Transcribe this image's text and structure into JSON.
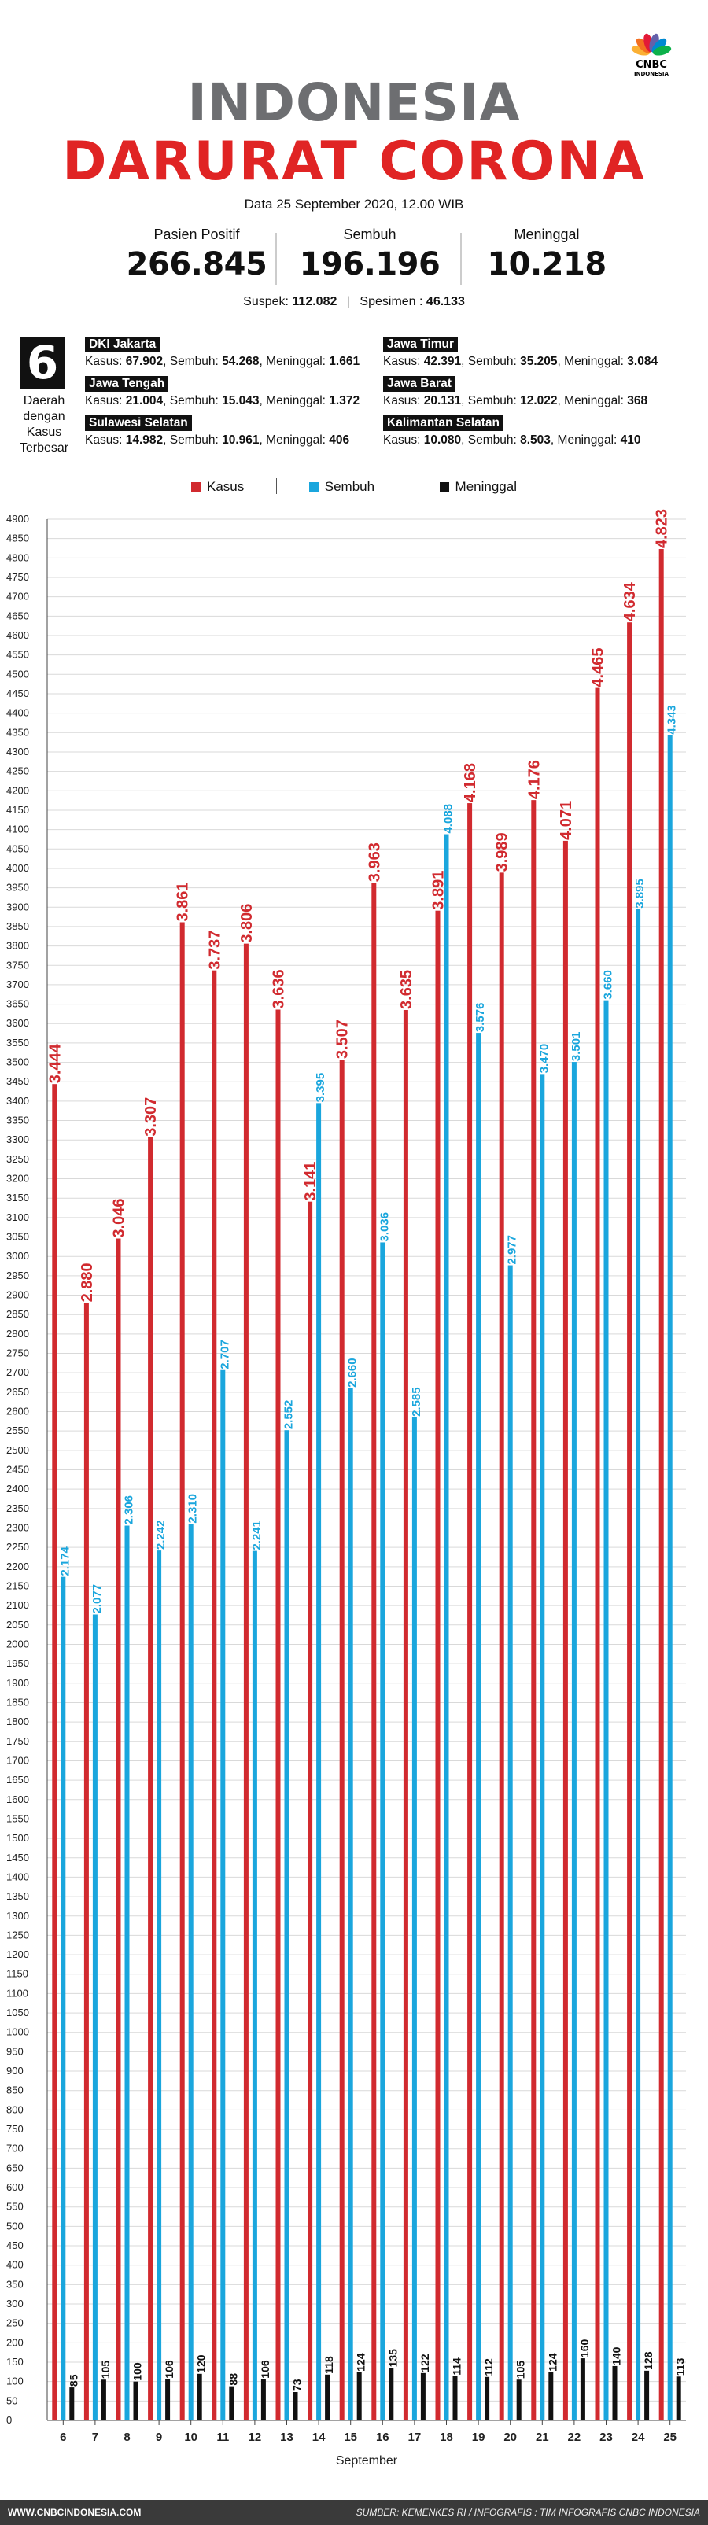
{
  "brand": {
    "line1": "CNBC",
    "line2": "INDONESIA",
    "colors": [
      "#fbb034",
      "#f36f21",
      "#e31937",
      "#6460aa",
      "#0089d1",
      "#0db14b"
    ]
  },
  "header": {
    "title_line1": "INDONESIA",
    "title_line2": "DARURAT CORONA",
    "date": "Data 25 September 2020, 12.00 WIB"
  },
  "stats": [
    {
      "label": "Pasien Positif",
      "value": "266.845"
    },
    {
      "label": "Sembuh",
      "value": "196.196"
    },
    {
      "label": "Meninggal",
      "value": "10.218"
    }
  ],
  "sub": {
    "suspek_label": "Suspek:",
    "suspek_value": "112.082",
    "specimen_label": "Spesimen :",
    "specimen_value": "46.133"
  },
  "regions_box": {
    "count": "6",
    "label": "Daerah dengan Kasus Terbesar"
  },
  "regions": [
    {
      "name": "DKI Jakarta",
      "kasus": "67.902",
      "sembuh": "54.268",
      "meninggal": "1.661"
    },
    {
      "name": "Jawa Timur",
      "kasus": "42.391",
      "sembuh": "35.205",
      "meninggal": "3.084"
    },
    {
      "name": "Jawa Tengah",
      "kasus": "21.004",
      "sembuh": "15.043",
      "meninggal": "1.372"
    },
    {
      "name": "Jawa Barat",
      "kasus": "20.131",
      "sembuh": "12.022",
      "meninggal": "368"
    },
    {
      "name": "Sulawesi Selatan",
      "kasus": "14.982",
      "sembuh": "10.961",
      "meninggal": "406"
    },
    {
      "name": "Kalimantan Selatan",
      "kasus": "10.080",
      "sembuh": "8.503",
      "meninggal": "410"
    }
  ],
  "region_labels": {
    "kasus": "Kasus:",
    "sembuh": "Sembuh:",
    "meninggal": "Meninggal:"
  },
  "chart_data": {
    "type": "bar",
    "categories": [
      "6",
      "7",
      "8",
      "9",
      "10",
      "11",
      "12",
      "13",
      "14",
      "15",
      "16",
      "17",
      "18",
      "19",
      "20",
      "21",
      "22",
      "23",
      "24",
      "25"
    ],
    "series": [
      {
        "name": "Kasus",
        "color": "#d12a2f",
        "values": [
          3444,
          2880,
          3046,
          3307,
          3861,
          3737,
          3806,
          3636,
          3141,
          3507,
          3963,
          3635,
          3891,
          4168,
          3989,
          4176,
          4071,
          4465,
          4634,
          4823
        ],
        "labels": [
          "3.444",
          "2.880",
          "3.046",
          "3.307",
          "3.861",
          "3.737",
          "3.806",
          "3.636",
          "3.141",
          "3.507",
          "3.963",
          "3.635",
          "3.891",
          "4.168",
          "3.989",
          "4.176",
          "4.071",
          "4.465",
          "4.634",
          "4.823"
        ]
      },
      {
        "name": "Sembuh",
        "color": "#1aa6dd",
        "values": [
          2174,
          2077,
          2306,
          2242,
          2310,
          2707,
          2241,
          2552,
          3395,
          2660,
          3036,
          2585,
          4088,
          3576,
          2977,
          3470,
          3501,
          3660,
          3895,
          4343
        ],
        "labels": [
          "2.174",
          "2.077",
          "2.306",
          "2.242",
          "2.310",
          "2.707",
          "2.241",
          "2.552",
          "3.395",
          "2.660",
          "3.036",
          "2.585",
          "4.088",
          "3.576",
          "2.977",
          "3.470",
          "3.501",
          "3.660",
          "3.895",
          "4.343"
        ]
      },
      {
        "name": "Meninggal",
        "color": "#111111",
        "values": [
          85,
          105,
          100,
          106,
          120,
          88,
          106,
          73,
          118,
          124,
          135,
          122,
          114,
          112,
          105,
          124,
          160,
          140,
          128,
          113
        ],
        "labels": [
          "85",
          "105",
          "100",
          "106",
          "120",
          "88",
          "106",
          "73",
          "118",
          "124",
          "135",
          "122",
          "114",
          "112",
          "105",
          "124",
          "160",
          "140",
          "128",
          "113"
        ]
      }
    ],
    "xlabel": "September",
    "ylabel": "",
    "ylim": [
      0,
      4900
    ],
    "ytick_step": 50,
    "grid": true,
    "legend": "top-center"
  },
  "footer": {
    "left": "WWW.CNBCINDONESIA.COM",
    "right": "SUMBER: KEMENKES RI / INFOGRAFIS : TIM INFOGRAFIS CNBC INDONESIA"
  }
}
